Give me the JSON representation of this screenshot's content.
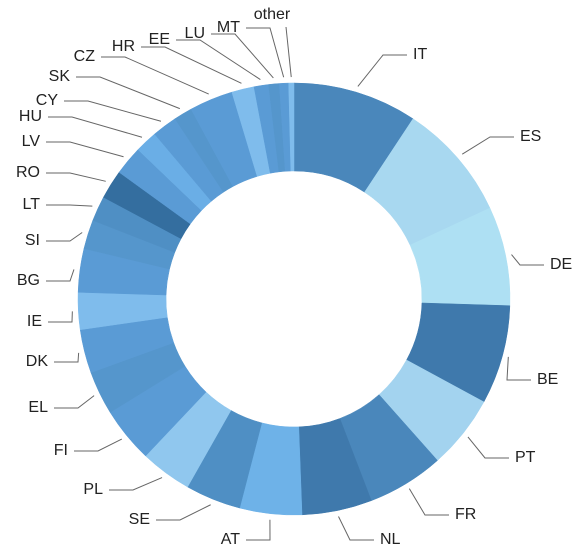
{
  "chart_data": {
    "type": "donut",
    "categories": [
      "IT",
      "ES",
      "DE",
      "BE",
      "PT",
      "FR",
      "NL",
      "AT",
      "SE",
      "PL",
      "FI",
      "EL",
      "DK",
      "IE",
      "BG",
      "SI",
      "LT",
      "RO",
      "LV",
      "HU",
      "CY",
      "SK",
      "CZ",
      "HR",
      "EE",
      "LU",
      "MT",
      "other"
    ],
    "values": [
      9.4,
      8.9,
      7.5,
      7.5,
      5.6,
      5.8,
      5.3,
      4.7,
      4.2,
      3.9,
      4.2,
      3.3,
      3.3,
      2.8,
      3.3,
      2.2,
      1.9,
      2.2,
      2.2,
      1.7,
      1.9,
      1.4,
      3.3,
      1.7,
      1.1,
      0.8,
      0.7,
      0.4
    ],
    "colors": [
      "#4a87bb",
      "#a8d8f0",
      "#aee0f3",
      "#3f79ac",
      "#a3d3ef",
      "#4a87bb",
      "#3f79ac",
      "#6eb2e8",
      "#4f8fc4",
      "#90c7ee",
      "#5a9bd5",
      "#5596cc",
      "#5a9bd5",
      "#7fbcec",
      "#5a9bd5",
      "#5596cc",
      "#4f8fc4",
      "#346e9f",
      "#5a9bd5",
      "#6aaee6",
      "#5a9bd5",
      "#5596cc",
      "#5a9bd5",
      "#7fbcec",
      "#5a9bd5",
      "#5596cc",
      "#5a9bd5",
      "#7fbcec"
    ]
  }
}
